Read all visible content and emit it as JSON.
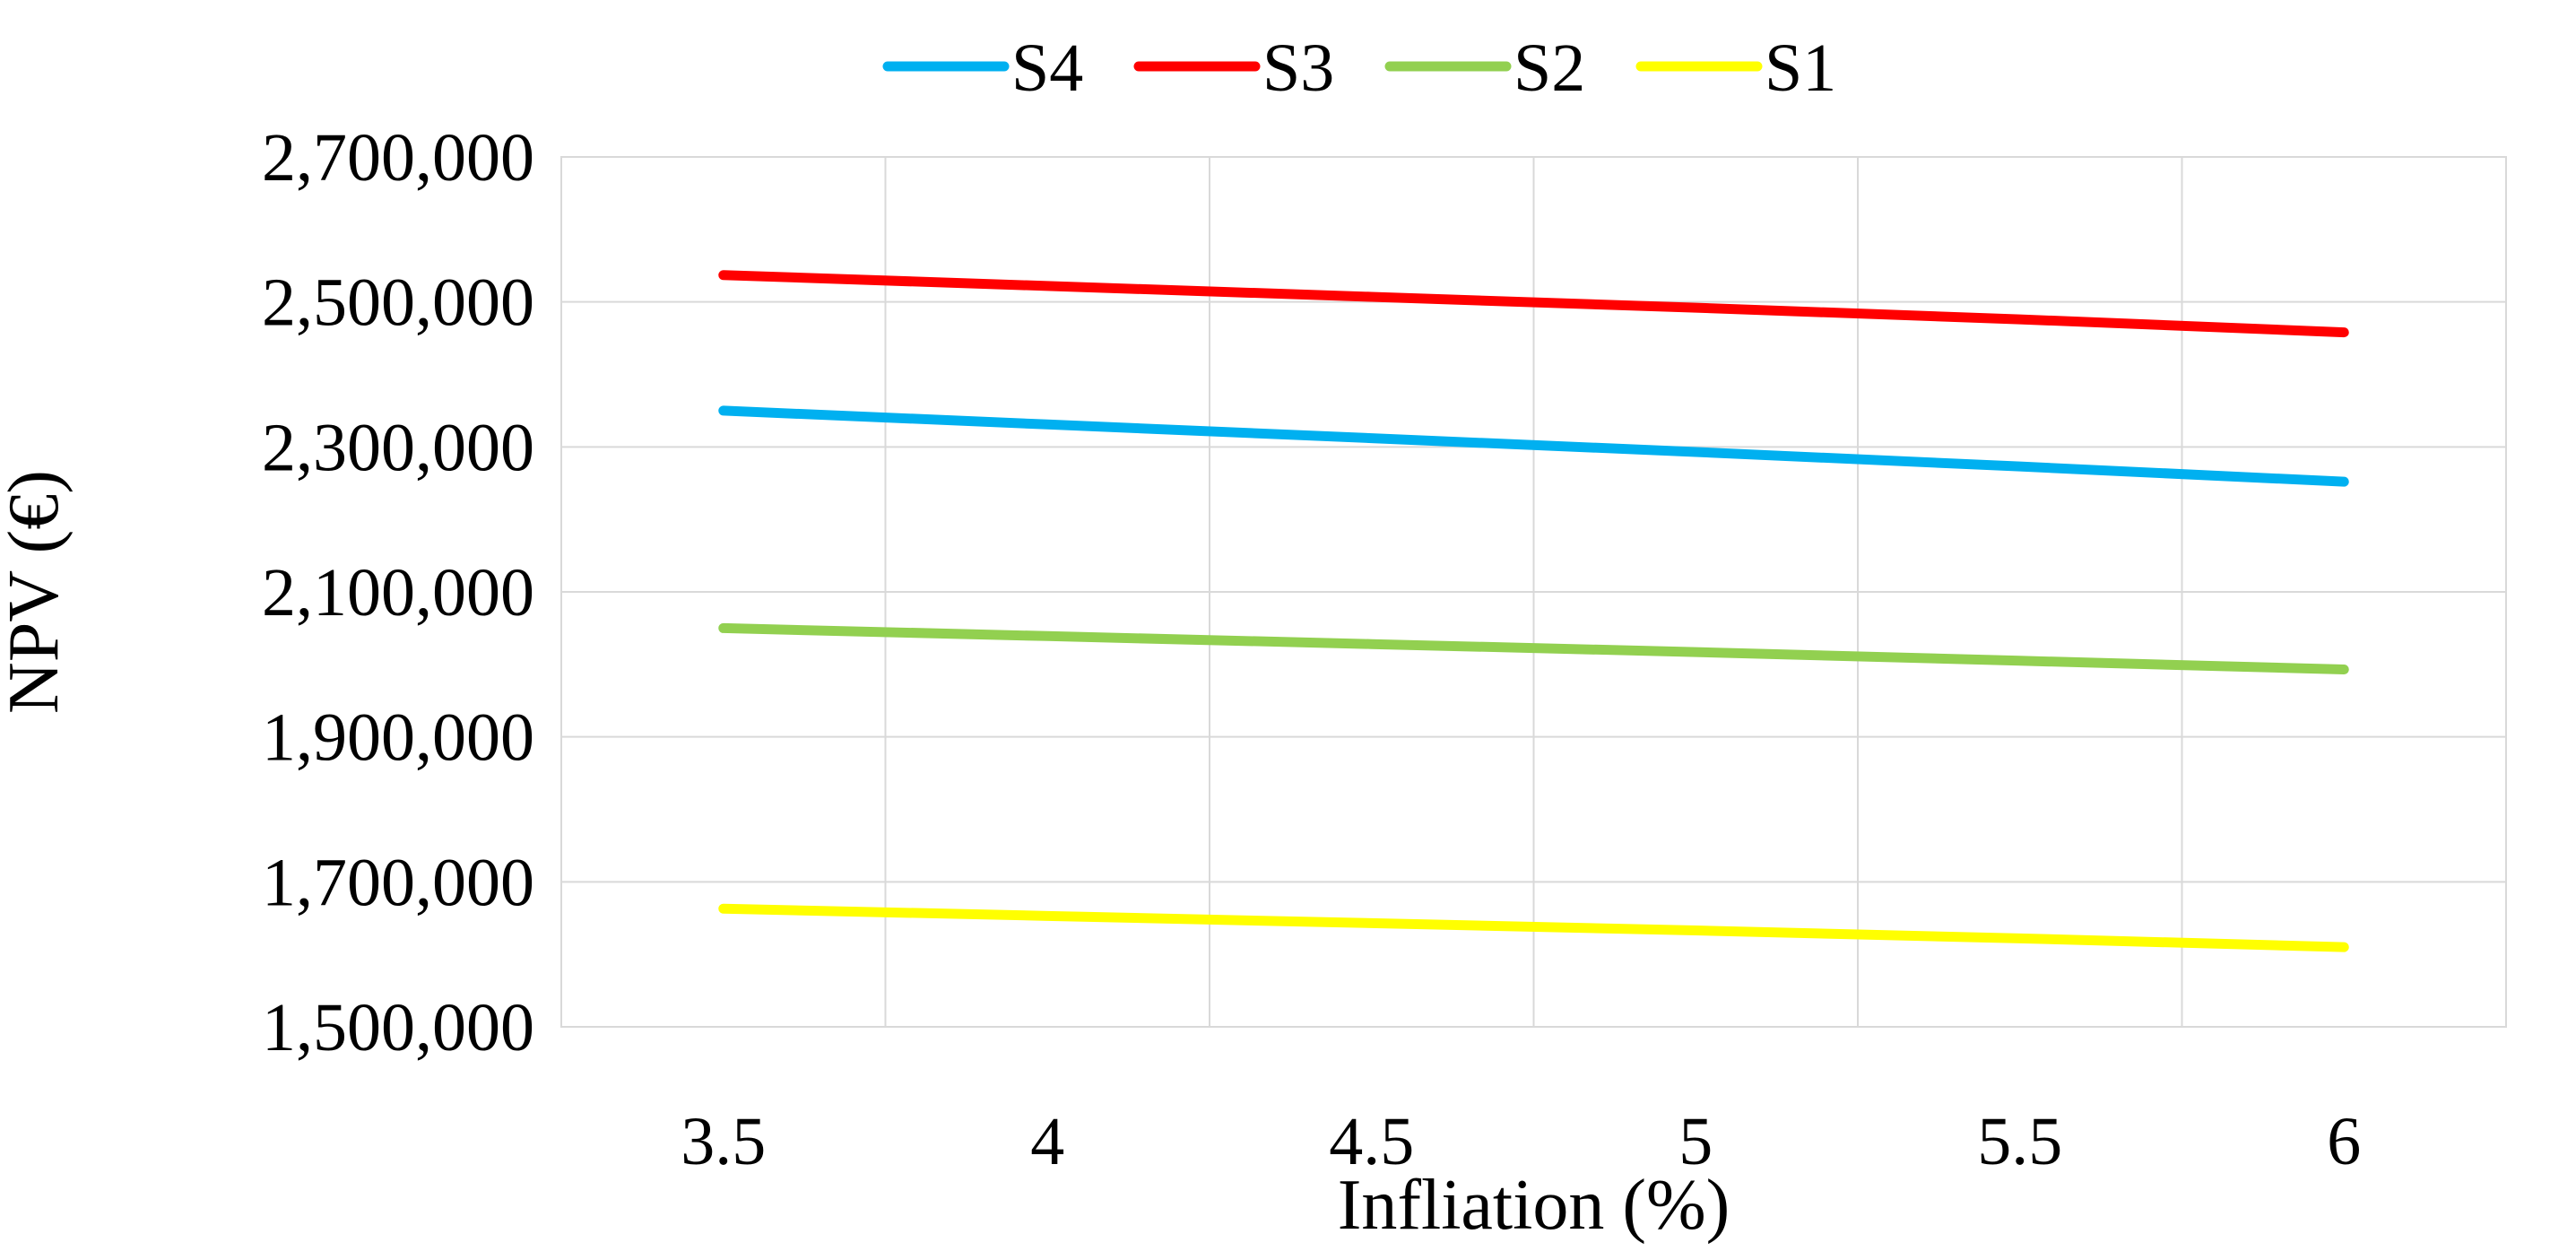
{
  "chart_data": {
    "type": "line",
    "title": "",
    "xlabel": "Infliation (%)",
    "ylabel": "NPV (€)",
    "x": [
      3.5,
      4,
      4.5,
      5,
      5.5,
      6
    ],
    "xticks": [
      "3.5",
      "4",
      "4.5",
      "5",
      "5.5",
      "6"
    ],
    "yticks": [
      "1,500,000",
      "1,700,000",
      "1,900,000",
      "2,100,000",
      "2,300,000",
      "2,500,000",
      "2,700,000"
    ],
    "ylim": [
      1500000,
      2700000
    ],
    "grid": true,
    "legend_position": "top",
    "series": [
      {
        "name": "S4",
        "color": "#00b0f0",
        "values": [
          2350000,
          2331000,
          2312000,
          2293000,
          2273000,
          2252000
        ]
      },
      {
        "name": "S3",
        "color": "#ff0000",
        "values": [
          2537000,
          2522000,
          2507000,
          2492000,
          2476000,
          2458000
        ]
      },
      {
        "name": "S2",
        "color": "#92d050",
        "values": [
          2050000,
          2039000,
          2028000,
          2017000,
          2005000,
          1993000
        ]
      },
      {
        "name": "S1",
        "color": "#ffff00",
        "values": [
          1663000,
          1653000,
          1643000,
          1633000,
          1622000,
          1610000
        ]
      }
    ]
  }
}
